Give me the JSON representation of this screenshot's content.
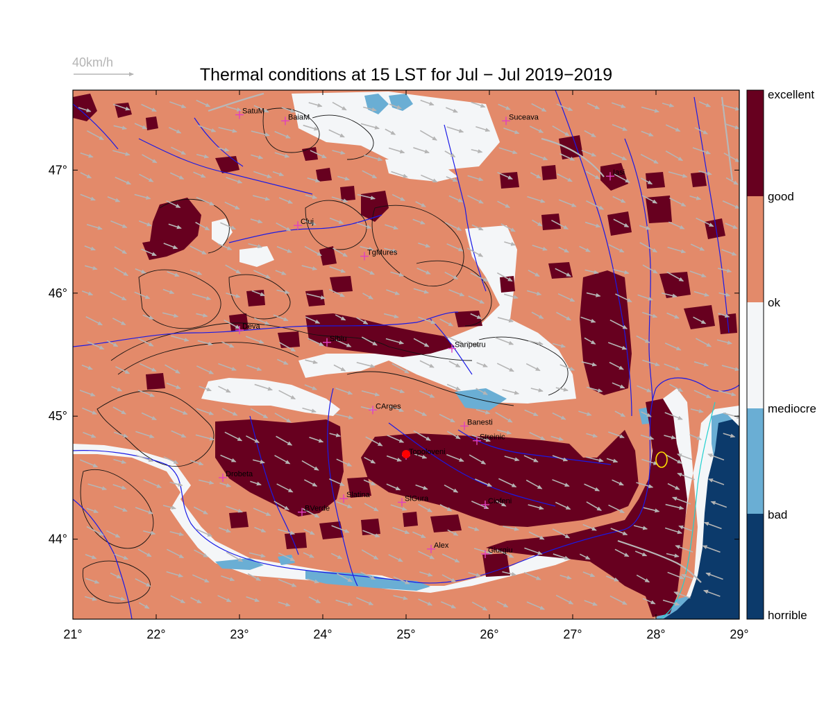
{
  "title": "Thermal conditions at 15 LST for Jul − Jul  2019−2019",
  "wind_reference": {
    "label": "40km/h"
  },
  "map": {
    "lon_range": [
      21,
      29
    ],
    "lat_range": [
      43.35,
      47.65
    ],
    "lon_ticks": [
      "21°",
      "22°",
      "23°",
      "24°",
      "25°",
      "26°",
      "27°",
      "28°",
      "29°"
    ],
    "lat_ticks": [
      "47°",
      "46°",
      "45°",
      "44°"
    ],
    "marked_site": "Topoloveni",
    "cities": [
      {
        "name": "SatuM",
        "lon": 23.0,
        "lat": 47.45
      },
      {
        "name": "BaiaM",
        "lon": 23.55,
        "lat": 47.4
      },
      {
        "name": "Suceava",
        "lon": 26.2,
        "lat": 47.4
      },
      {
        "name": "Iasi",
        "lon": 27.45,
        "lat": 46.95
      },
      {
        "name": "Cluj",
        "lon": 23.7,
        "lat": 46.55
      },
      {
        "name": "TgMures",
        "lon": 24.5,
        "lat": 46.3
      },
      {
        "name": "Deva",
        "lon": 23.0,
        "lat": 45.7
      },
      {
        "name": "Sibiu",
        "lon": 24.05,
        "lat": 45.6
      },
      {
        "name": "Sanpetru",
        "lon": 25.55,
        "lat": 45.55
      },
      {
        "name": "CArges",
        "lon": 24.6,
        "lat": 45.05
      },
      {
        "name": "Banesti",
        "lon": 25.7,
        "lat": 44.92
      },
      {
        "name": "Streinic",
        "lon": 25.85,
        "lat": 44.8
      },
      {
        "name": "Topoloveni",
        "lon": 25.0,
        "lat": 44.68
      },
      {
        "name": "Drobeta",
        "lon": 22.8,
        "lat": 44.5
      },
      {
        "name": "Slatina",
        "lon": 24.25,
        "lat": 44.33
      },
      {
        "name": "SlGura",
        "lon": 24.95,
        "lat": 44.3
      },
      {
        "name": "Ciofeni",
        "lon": 25.95,
        "lat": 44.28
      },
      {
        "name": "BVerde",
        "lon": 23.75,
        "lat": 44.22
      },
      {
        "name": "Alex",
        "lon": 25.3,
        "lat": 43.92
      },
      {
        "name": "Giurgiu",
        "lon": 25.95,
        "lat": 43.88
      }
    ]
  },
  "legend": {
    "categories": [
      {
        "label": "excellent",
        "color": "#67001f"
      },
      {
        "label": "good",
        "color": "#e38a6a"
      },
      {
        "label": "ok",
        "color": "#f4f6f8"
      },
      {
        "label": "mediocre",
        "color": "#6aaed4"
      },
      {
        "label": "bad",
        "color": "#0c3a6b"
      },
      {
        "label": "horrible",
        "color": ""
      }
    ]
  },
  "colors": {
    "excellent": "#67001f",
    "good": "#e38a6a",
    "ok": "#f4f6f8",
    "mediocre": "#6aaed4",
    "bad": "#0c3a6b",
    "river": "#1a1ae6",
    "road": "#b8b8b8",
    "city_marker": "#e040c0",
    "site_marker": "#ff0000"
  }
}
